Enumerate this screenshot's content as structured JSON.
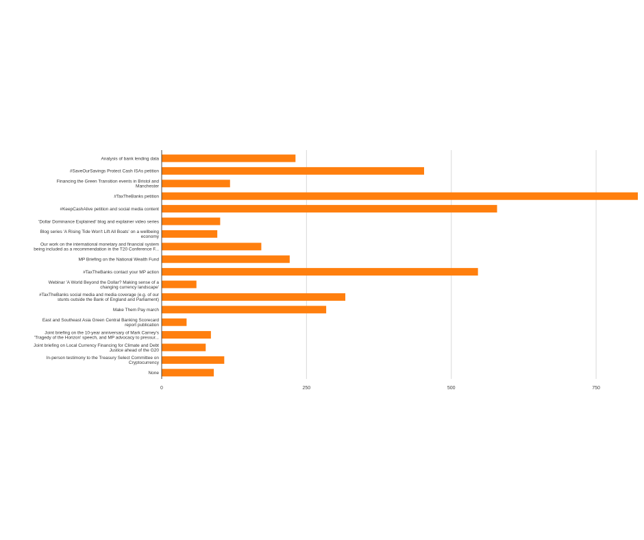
{
  "chart_data": {
    "type": "bar",
    "orientation": "horizontal",
    "categories": [
      [
        "Analysis of bank lending data"
      ],
      [
        "#SaveOurSavings Protect Cash ISAs petition"
      ],
      [
        "Financing the Green Transition events in Bristol and",
        "Manchester"
      ],
      [
        "#TaxTheBanks petition"
      ],
      [
        "#KeepCashAlive petition and social media content"
      ],
      [
        "'Dollar Dominance Explained' blog and explainer video series"
      ],
      [
        "Blog series 'A Rising Tide Won't Lift All Boats' on a wellbeing",
        "economy"
      ],
      [
        "Our work on the international monetary and financial system",
        "being included as a recommendation in the T20 Conference F..."
      ],
      [
        "MP Briefing on the National Wealth Fund"
      ],
      [
        "#TaxTheBanks contact your MP action"
      ],
      [
        "Webinar 'A World Beyond the Dollar? Making sense of a",
        "changing currency landscape'"
      ],
      [
        "#TaxTheBanks social media and media coverage (e.g. of our",
        "stunts outside the Bank of England and Parliament)"
      ],
      [
        "Make Them Pay march"
      ],
      [
        "East and Southeast Asia Green Central Banking Scorecard",
        "report publication"
      ],
      [
        "Joint briefing on the 10-year anniversary of Mark Carney's",
        "'Tragedy of the Horizon' speech, and MP advocacy to pressur..."
      ],
      [
        "Joint briefing on Local Currency Financing for Climate and Debt",
        "Justice ahead of the G20"
      ],
      [
        "In-person testimony to the Treasury Select Committee on",
        "Cryptocurrency"
      ],
      [
        "None"
      ]
    ],
    "values": [
      231,
      453,
      118,
      822,
      579,
      101,
      96,
      172,
      221,
      546,
      60,
      317,
      284,
      43,
      85,
      76,
      108,
      90
    ],
    "xlim": [
      0,
      822
    ],
    "xticks": [
      0,
      250,
      500,
      750
    ],
    "title": "",
    "xlabel": "",
    "ylabel": "",
    "grid": true,
    "bar_color": "#ff7f0e"
  }
}
